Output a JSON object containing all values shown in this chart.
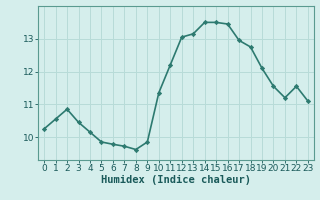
{
  "x": [
    0,
    1,
    2,
    3,
    4,
    5,
    6,
    7,
    8,
    9,
    10,
    11,
    12,
    13,
    14,
    15,
    16,
    17,
    18,
    19,
    20,
    21,
    22,
    23
  ],
  "y": [
    10.25,
    10.55,
    10.85,
    10.45,
    10.15,
    9.85,
    9.78,
    9.72,
    9.62,
    9.85,
    11.35,
    12.2,
    13.05,
    13.15,
    13.5,
    13.5,
    13.45,
    12.95,
    12.75,
    12.1,
    11.55,
    11.2,
    11.55,
    11.1
  ],
  "xlabel": "Humidex (Indice chaleur)",
  "ylim": [
    9.3,
    14.0
  ],
  "xlim": [
    -0.5,
    23.5
  ],
  "bg_color": "#d5eeec",
  "line_color": "#2d7a70",
  "marker_color": "#2d7a70",
  "grid_color": "#b8dbd8",
  "tick_label_color": "#1a5a5a",
  "axis_color": "#5a9a90",
  "yticks": [
    10,
    11,
    12,
    13
  ],
  "xticks": [
    0,
    1,
    2,
    3,
    4,
    5,
    6,
    7,
    8,
    9,
    10,
    11,
    12,
    13,
    14,
    15,
    16,
    17,
    18,
    19,
    20,
    21,
    22,
    23
  ],
  "font_size": 6.5,
  "xlabel_fontsize": 7.5,
  "linewidth": 1.2,
  "markersize": 2.2
}
